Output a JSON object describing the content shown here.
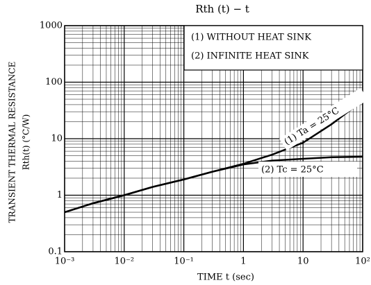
{
  "chart_data": {
    "type": "line",
    "title": "Rth (t) − t",
    "ylabel": "TRANSIENT THERMAL RESISTANCE",
    "ylabel2": "Rth(t) (°C/W)",
    "xlabel": "TIME   t  (sec)",
    "xscale": "log",
    "yscale": "log",
    "grid": true,
    "minor_grid": true,
    "legend_position": "upper right",
    "legend": [
      "(1) WITHOUT HEAT SINK",
      "(2) INFINITE HEAT SINK"
    ],
    "xlim": [
      0.001,
      100
    ],
    "ylim": [
      0.1,
      1000
    ],
    "xticks": [
      {
        "value": 0.001,
        "label": "10⁻³"
      },
      {
        "value": 0.01,
        "label": "10⁻²"
      },
      {
        "value": 0.1,
        "label": "10⁻¹"
      },
      1,
      10,
      {
        "value": 100,
        "label": "10²"
      }
    ],
    "yticks": [
      0.1,
      1,
      10,
      100,
      1000
    ],
    "x": [
      0.001,
      0.003,
      0.01,
      0.03,
      0.1,
      0.3,
      1,
      3,
      10,
      30,
      100
    ],
    "series": [
      {
        "name": "(1) Ta = 25°C",
        "color": "#000000",
        "values": [
          0.5,
          0.72,
          1.0,
          1.4,
          1.9,
          2.6,
          3.6,
          5.2,
          8.5,
          18,
          47
        ]
      },
      {
        "name": "(2) Tc = 25°C",
        "color": "#000000",
        "values": [
          0.5,
          0.72,
          1.0,
          1.4,
          1.9,
          2.6,
          3.5,
          4.1,
          4.4,
          4.7,
          4.8
        ]
      }
    ]
  }
}
